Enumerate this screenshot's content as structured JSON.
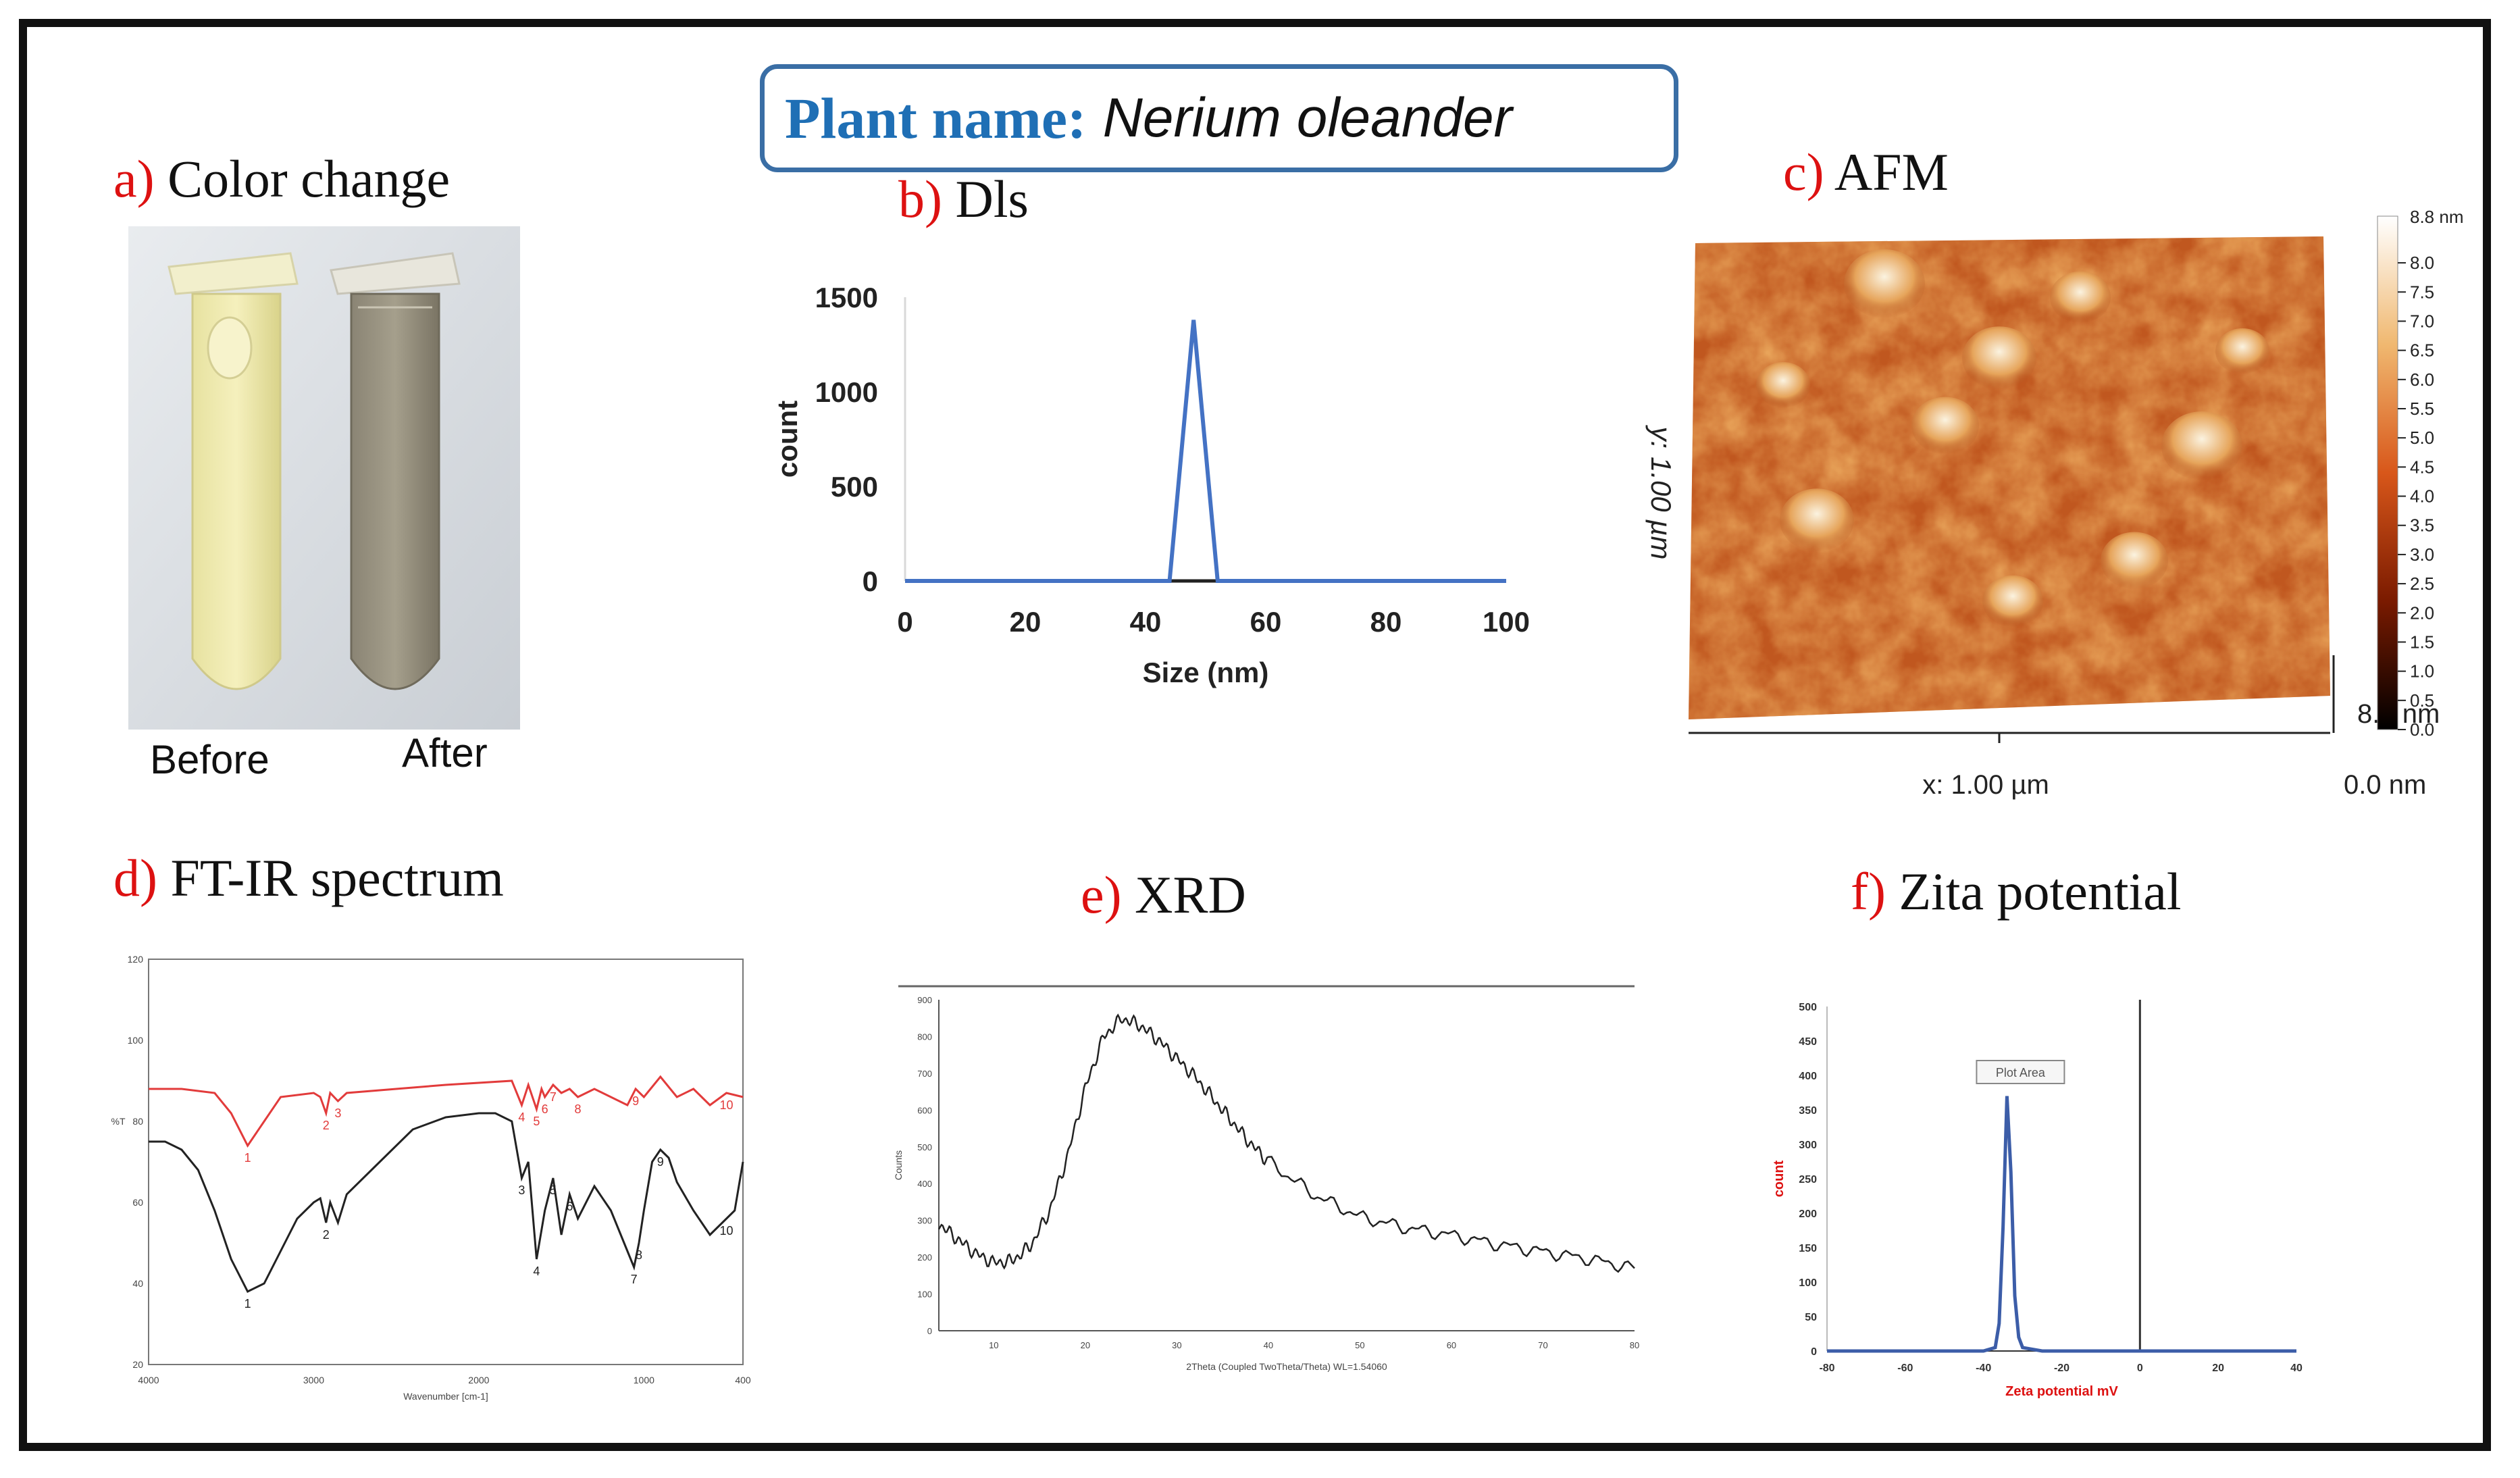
{
  "banner": {
    "label": "Plant name:",
    "value": "Nerium oleander"
  },
  "panels": {
    "a": {
      "letter": "a)",
      "title": "Color change",
      "before": "Before",
      "after": "After"
    },
    "b": {
      "letter": "b)",
      "title": "Dls"
    },
    "c": {
      "letter": "c)",
      "title": "AFM"
    },
    "d": {
      "letter": "d)",
      "title": "FT-IR spectrum"
    },
    "e": {
      "letter": "e)",
      "title": "XRD"
    },
    "f": {
      "letter": "f)",
      "title": "Zita potential"
    }
  },
  "colors": {
    "accent_red": "#dd1111",
    "banner_blue": "#1f6fb5",
    "dls_line": "#4472c4",
    "ftir_red": "#e23b3b",
    "ftir_black": "#222222",
    "zeta_line": "#3c5da8"
  },
  "chart_data": [
    {
      "id": "dls",
      "type": "line",
      "title": "",
      "xlabel": "Size (nm)",
      "ylabel": "count",
      "xlim": [
        0,
        100
      ],
      "ylim": [
        0,
        1500
      ],
      "xticks": [
        0,
        20,
        40,
        60,
        80,
        100
      ],
      "yticks": [
        0,
        500,
        1000,
        1500
      ],
      "x": [
        0,
        44,
        48,
        52,
        100
      ],
      "values": [
        0,
        0,
        1380,
        0,
        0
      ]
    },
    {
      "id": "afm",
      "type": "heatmap",
      "x_axis_label": "x: 1.00 µm",
      "y_axis_label": "y: 1.00 µm",
      "z_axis_label": "8.8 nm",
      "z_min_label": "0.0 nm",
      "colorbar_top": "8.8 nm",
      "colorbar_ticks": [
        8.0,
        7.5,
        7.0,
        6.5,
        6.0,
        5.5,
        5.0,
        4.5,
        4.0,
        3.5,
        3.0,
        2.5,
        2.0,
        1.5,
        1.0,
        0.5,
        0.0
      ],
      "zlim": [
        0,
        8.8
      ]
    },
    {
      "id": "ftir",
      "type": "line",
      "xlabel": "Wavenumber [cm-1]",
      "ylabel": "%T",
      "xlim": [
        4000,
        400
      ],
      "ylim": [
        20,
        120
      ],
      "xticks": [
        4000,
        3000,
        2000,
        1000,
        400
      ],
      "yticks": [
        20,
        40,
        60,
        80,
        100,
        120
      ],
      "series": [
        {
          "name": "",
          "color": "#e23b3b",
          "x": [
            4000,
            3800,
            3600,
            3500,
            3400,
            3300,
            3200,
            3000,
            2960,
            2925,
            2900,
            2853,
            2800,
            2500,
            2200,
            1800,
            1740,
            1700,
            1650,
            1620,
            1600,
            1550,
            1500,
            1450,
            1400,
            1300,
            1100,
            1050,
            1000,
            900,
            800,
            700,
            600,
            500,
            400
          ],
          "values": [
            88,
            88,
            87,
            82,
            74,
            80,
            86,
            87,
            86,
            82,
            87,
            85,
            87,
            88,
            89,
            90,
            84,
            89,
            83,
            88,
            86,
            89,
            87,
            88,
            86,
            88,
            84,
            88,
            86,
            91,
            86,
            88,
            84,
            87,
            86
          ],
          "peak_labels": [
            "1",
            "2",
            "3",
            "4",
            "5",
            "6",
            "7",
            "8",
            "9",
            "10"
          ]
        },
        {
          "name": "",
          "color": "#222222",
          "x": [
            4000,
            3900,
            3800,
            3700,
            3600,
            3500,
            3450,
            3400,
            3300,
            3200,
            3100,
            3000,
            2960,
            2925,
            2900,
            2853,
            2800,
            2600,
            2400,
            2200,
            2000,
            1900,
            1800,
            1740,
            1700,
            1650,
            1600,
            1550,
            1500,
            1450,
            1400,
            1300,
            1200,
            1100,
            1060,
            1030,
            1000,
            950,
            900,
            850,
            800,
            700,
            600,
            500,
            450,
            400
          ],
          "values": [
            75,
            75,
            73,
            68,
            58,
            46,
            42,
            38,
            40,
            48,
            56,
            60,
            61,
            55,
            60,
            55,
            62,
            70,
            78,
            81,
            82,
            82,
            80,
            66,
            70,
            46,
            58,
            66,
            52,
            62,
            56,
            64,
            58,
            48,
            44,
            50,
            58,
            70,
            73,
            71,
            65,
            58,
            52,
            56,
            58,
            70
          ],
          "peak_labels": [
            "1",
            "2",
            "3",
            "4",
            "5",
            "6",
            "7",
            "8",
            "9",
            "10"
          ]
        }
      ]
    },
    {
      "id": "xrd",
      "type": "line",
      "xlabel": "2Theta (Coupled TwoTheta/Theta) WL=1.54060",
      "ylabel": "Counts",
      "xlim": [
        4,
        80
      ],
      "ylim": [
        0,
        900
      ],
      "xticks": [
        10,
        20,
        30,
        40,
        50,
        60,
        70,
        80
      ],
      "yticks": [
        0,
        100,
        200,
        300,
        400,
        500,
        600,
        700,
        800,
        900
      ],
      "x": [
        4,
        6,
        8,
        10,
        12,
        14,
        16,
        18,
        20,
        22,
        24,
        26,
        28,
        30,
        32,
        34,
        36,
        38,
        40,
        45,
        50,
        55,
        60,
        65,
        70,
        75,
        80
      ],
      "values": [
        290,
        250,
        210,
        185,
        190,
        230,
        320,
        470,
        660,
        800,
        850,
        830,
        790,
        740,
        690,
        630,
        570,
        510,
        460,
        370,
        310,
        280,
        260,
        235,
        215,
        195,
        170
      ]
    },
    {
      "id": "zeta",
      "type": "line",
      "xlabel": "Zeta potential mV",
      "ylabel": "count",
      "xlim": [
        -80,
        40
      ],
      "ylim": [
        0,
        500
      ],
      "xticks": [
        -80,
        -60,
        -40,
        -20,
        0,
        20,
        40
      ],
      "yticks": [
        0,
        50,
        100,
        150,
        200,
        250,
        300,
        350,
        400,
        450,
        500
      ],
      "annotation": "Plot Area",
      "x": [
        -80,
        -40,
        -37,
        -36,
        -35,
        -34,
        -33,
        -32,
        -31,
        -30,
        -25,
        40
      ],
      "values": [
        0,
        0,
        5,
        40,
        180,
        370,
        260,
        80,
        20,
        5,
        0,
        0
      ]
    }
  ]
}
